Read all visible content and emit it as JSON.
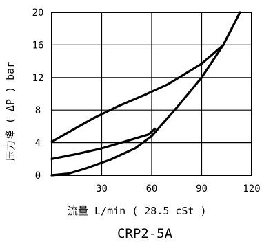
{
  "chart_data": {
    "type": "line",
    "title": "CRP2-5A",
    "xlabel": "流量 L/min ( 28.5 cSt )",
    "ylabel": "压力降 ( ΔP ) bar",
    "xlim": [
      0,
      120
    ],
    "ylim": [
      0,
      20
    ],
    "x_ticks": [
      30,
      60,
      90,
      120
    ],
    "y_ticks": [
      0,
      4,
      8,
      12,
      16,
      20
    ],
    "grid": true,
    "legend": "none",
    "series": [
      {
        "x": [
          0,
          12,
          25,
          40,
          55,
          70,
          90,
          103
        ],
        "y": [
          4.1,
          5.5,
          7.0,
          8.5,
          9.8,
          11.2,
          13.7,
          16.0
        ]
      },
      {
        "x": [
          0,
          15,
          30,
          45,
          58,
          62
        ],
        "y": [
          2.0,
          2.6,
          3.3,
          4.2,
          5.0,
          5.7
        ]
      },
      {
        "x": [
          0,
          10,
          20,
          35,
          50,
          60,
          75,
          90,
          103,
          113
        ],
        "y": [
          0,
          0.2,
          0.8,
          1.9,
          3.3,
          4.8,
          8.3,
          12.0,
          16.0,
          20.0
        ]
      }
    ]
  }
}
